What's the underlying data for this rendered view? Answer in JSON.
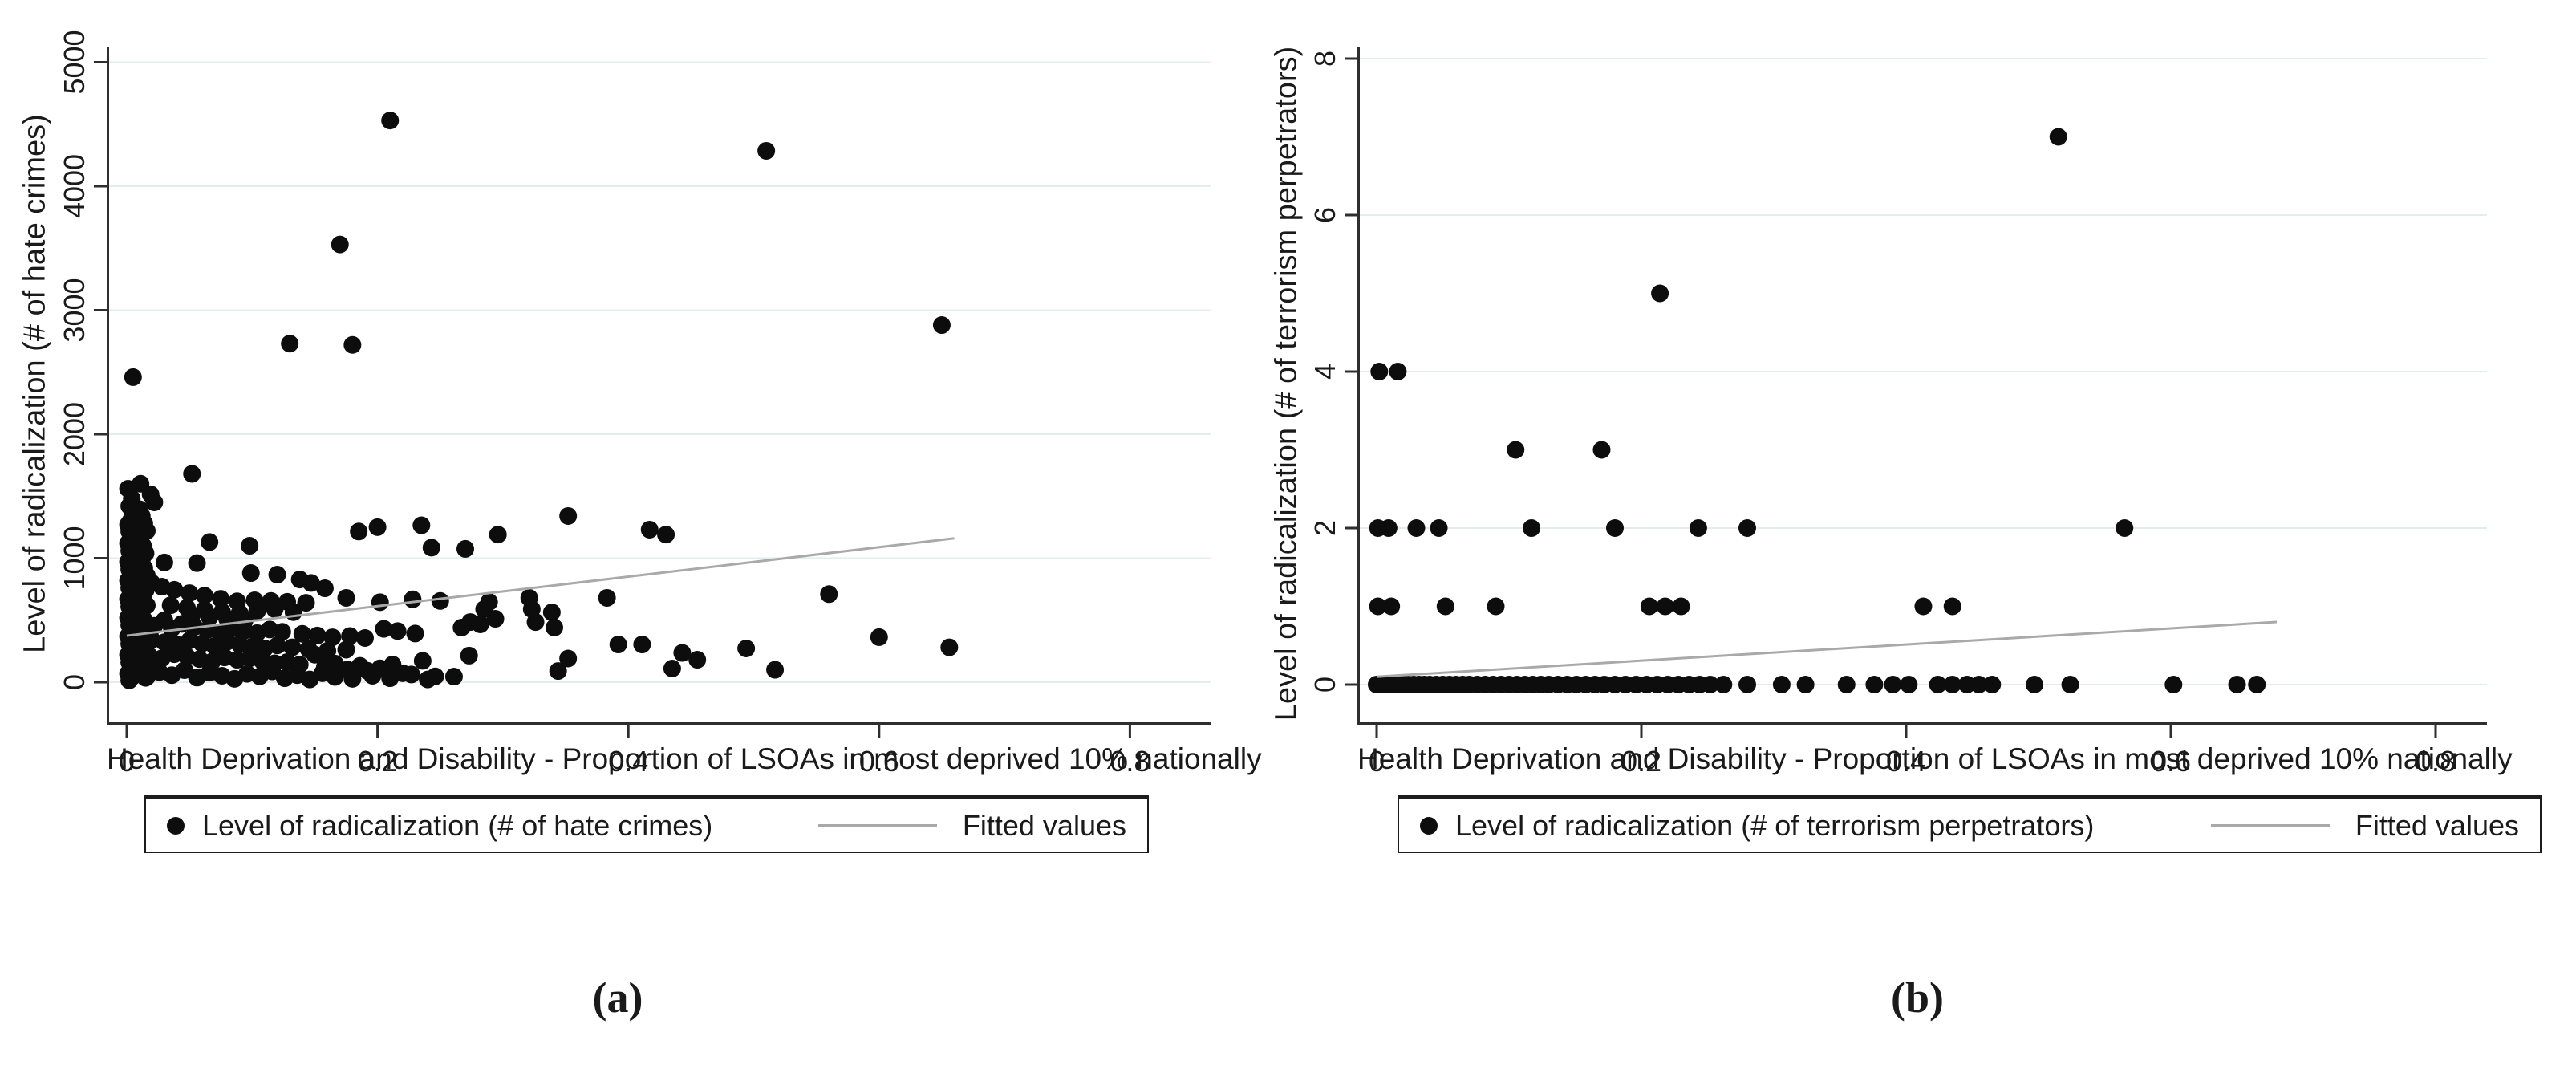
{
  "figure": {
    "background": "#ffffff",
    "colors": {
      "dot": "#0d0d0d",
      "fitted_line": "#a9a9a9",
      "gridline": "#e2eeee",
      "axis": "#2e2e2e"
    }
  },
  "chart_data": [
    {
      "type": "scatter",
      "panel": "a",
      "caption": "(a)",
      "title": "",
      "xlabel": "Health Deprivation and Disability - Proportion of LSOAs in most deprived 10% nationally",
      "ylabel": "Level of radicalization (# of hate crimes)",
      "legend": [
        "Level of radicalization (# of hate crimes)",
        "Fitted values"
      ],
      "legend_position": "below",
      "grid": "horizontal",
      "x_ticks": [
        0,
        0.2,
        0.4,
        0.6,
        0.8
      ],
      "y_ticks": [
        0,
        1000,
        2000,
        3000,
        4000,
        5000
      ],
      "xlim": [
        -0.016,
        0.865
      ],
      "ylim": [
        -340,
        5120
      ],
      "fitted_values_line": {
        "x": [
          0,
          0.66
        ],
        "y": [
          375,
          1160
        ]
      },
      "points": [
        [
          0.005,
          2460
        ],
        [
          0.21,
          4530
        ],
        [
          0.51,
          4285
        ],
        [
          0.17,
          3530
        ],
        [
          0.13,
          2730
        ],
        [
          0.18,
          2720
        ],
        [
          0.65,
          2880
        ],
        [
          0.001,
          1560
        ],
        [
          0.004,
          1480
        ],
        [
          0.002,
          1420
        ],
        [
          0.005,
          1360
        ],
        [
          0.003,
          1300
        ],
        [
          0.001,
          1270
        ],
        [
          0.004,
          1245
        ],
        [
          0.002,
          1215
        ],
        [
          0.005,
          1185
        ],
        [
          0.003,
          1150
        ],
        [
          0.001,
          1120
        ],
        [
          0.004,
          1090
        ],
        [
          0.002,
          1060
        ],
        [
          0.005,
          1030
        ],
        [
          0.003,
          1000
        ],
        [
          0.001,
          970
        ],
        [
          0.004,
          940
        ],
        [
          0.002,
          910
        ],
        [
          0.005,
          880
        ],
        [
          0.003,
          850
        ],
        [
          0.001,
          820
        ],
        [
          0.004,
          790
        ],
        [
          0.002,
          760
        ],
        [
          0.005,
          730
        ],
        [
          0.003,
          700
        ],
        [
          0.001,
          670
        ],
        [
          0.004,
          640
        ],
        [
          0.002,
          610
        ],
        [
          0.005,
          580
        ],
        [
          0.003,
          550
        ],
        [
          0.001,
          520
        ],
        [
          0.004,
          490
        ],
        [
          0.002,
          460
        ],
        [
          0.005,
          430
        ],
        [
          0.003,
          400
        ],
        [
          0.001,
          370
        ],
        [
          0.004,
          340
        ],
        [
          0.002,
          310
        ],
        [
          0.005,
          280
        ],
        [
          0.003,
          250
        ],
        [
          0.001,
          220
        ],
        [
          0.004,
          190
        ],
        [
          0.002,
          160
        ],
        [
          0.005,
          130
        ],
        [
          0.003,
          100
        ],
        [
          0.001,
          70
        ],
        [
          0.004,
          40
        ],
        [
          0.002,
          15
        ],
        [
          0.011,
          1600
        ],
        [
          0.019,
          1515
        ],
        [
          0.022,
          1450
        ],
        [
          0.01,
          1395
        ],
        [
          0.012,
          1340
        ],
        [
          0.014,
          1280
        ],
        [
          0.016,
          1220
        ],
        [
          0.011,
          1160
        ],
        [
          0.013,
          1100
        ],
        [
          0.015,
          1040
        ],
        [
          0.012,
          980
        ],
        [
          0.014,
          920
        ],
        [
          0.016,
          860
        ],
        [
          0.012,
          800
        ],
        [
          0.015,
          740
        ],
        [
          0.013,
          680
        ],
        [
          0.016,
          620
        ],
        [
          0.012,
          560
        ],
        [
          0.014,
          500
        ],
        [
          0.016,
          440
        ],
        [
          0.013,
          380
        ],
        [
          0.015,
          320
        ],
        [
          0.012,
          260
        ],
        [
          0.014,
          200
        ],
        [
          0.016,
          140
        ],
        [
          0.013,
          80
        ],
        [
          0.015,
          35
        ],
        [
          0.052,
          1680
        ],
        [
          0.066,
          1130
        ],
        [
          0.098,
          1100
        ],
        [
          0.185,
          1215
        ],
        [
          0.2,
          1250
        ],
        [
          0.235,
          1265
        ],
        [
          0.243,
          1085
        ],
        [
          0.27,
          1075
        ],
        [
          0.296,
          1190
        ],
        [
          0.352,
          1340
        ],
        [
          0.417,
          1230
        ],
        [
          0.43,
          1190
        ],
        [
          0.03,
          965
        ],
        [
          0.056,
          960
        ],
        [
          0.099,
          880
        ],
        [
          0.12,
          867
        ],
        [
          0.138,
          828
        ],
        [
          0.147,
          800
        ],
        [
          0.158,
          757
        ],
        [
          0.02,
          800
        ],
        [
          0.028,
          770
        ],
        [
          0.038,
          745
        ],
        [
          0.05,
          718
        ],
        [
          0.062,
          698
        ],
        [
          0.075,
          672
        ],
        [
          0.088,
          652
        ],
        [
          0.102,
          660
        ],
        [
          0.115,
          655
        ],
        [
          0.128,
          648
        ],
        [
          0.143,
          640
        ],
        [
          0.175,
          680
        ],
        [
          0.202,
          645
        ],
        [
          0.228,
          668
        ],
        [
          0.25,
          655
        ],
        [
          0.035,
          620
        ],
        [
          0.048,
          600
        ],
        [
          0.062,
          585
        ],
        [
          0.076,
          568
        ],
        [
          0.09,
          558
        ],
        [
          0.104,
          575
        ],
        [
          0.118,
          590
        ],
        [
          0.133,
          565
        ],
        [
          0.052,
          540
        ],
        [
          0.066,
          525
        ],
        [
          0.08,
          512
        ],
        [
          0.094,
          498
        ],
        [
          0.015,
          480
        ],
        [
          0.022,
          455
        ],
        [
          0.03,
          500
        ],
        [
          0.036,
          432
        ],
        [
          0.044,
          470
        ],
        [
          0.054,
          445
        ],
        [
          0.064,
          420
        ],
        [
          0.074,
          402
        ],
        [
          0.084,
          435
        ],
        [
          0.094,
          415
        ],
        [
          0.104,
          396
        ],
        [
          0.114,
          425
        ],
        [
          0.124,
          406
        ],
        [
          0.14,
          390
        ],
        [
          0.152,
          376
        ],
        [
          0.164,
          362
        ],
        [
          0.178,
          372
        ],
        [
          0.19,
          356
        ],
        [
          0.205,
          430
        ],
        [
          0.216,
          412
        ],
        [
          0.23,
          392
        ],
        [
          0.02,
          342
        ],
        [
          0.03,
          322
        ],
        [
          0.04,
          302
        ],
        [
          0.05,
          336
        ],
        [
          0.06,
          312
        ],
        [
          0.07,
          292
        ],
        [
          0.08,
          326
        ],
        [
          0.09,
          306
        ],
        [
          0.1,
          286
        ],
        [
          0.11,
          272
        ],
        [
          0.12,
          296
        ],
        [
          0.132,
          281
        ],
        [
          0.145,
          266
        ],
        [
          0.16,
          252
        ],
        [
          0.175,
          262
        ],
        [
          0.008,
          232
        ],
        [
          0.018,
          212
        ],
        [
          0.028,
          192
        ],
        [
          0.038,
          226
        ],
        [
          0.048,
          206
        ],
        [
          0.058,
          186
        ],
        [
          0.068,
          166
        ],
        [
          0.078,
          200
        ],
        [
          0.088,
          181
        ],
        [
          0.098,
          192
        ],
        [
          0.108,
          172
        ],
        [
          0.118,
          152
        ],
        [
          0.128,
          162
        ],
        [
          0.138,
          142
        ],
        [
          0.15,
          222
        ],
        [
          0.158,
          122
        ],
        [
          0.166,
          150
        ],
        [
          0.176,
          102
        ],
        [
          0.186,
          132
        ],
        [
          0.192,
          92
        ],
        [
          0.202,
          112
        ],
        [
          0.212,
          142
        ],
        [
          0.22,
          72
        ],
        [
          0.227,
          62
        ],
        [
          0.236,
          172
        ],
        [
          0.246,
          47
        ],
        [
          0.006,
          62
        ],
        [
          0.016,
          42
        ],
        [
          0.026,
          82
        ],
        [
          0.036,
          57
        ],
        [
          0.046,
          97
        ],
        [
          0.056,
          37
        ],
        [
          0.066,
          77
        ],
        [
          0.076,
          52
        ],
        [
          0.086,
          27
        ],
        [
          0.096,
          67
        ],
        [
          0.106,
          47
        ],
        [
          0.116,
          87
        ],
        [
          0.126,
          32
        ],
        [
          0.136,
          57
        ],
        [
          0.146,
          22
        ],
        [
          0.156,
          72
        ],
        [
          0.166,
          42
        ],
        [
          0.18,
          27
        ],
        [
          0.196,
          52
        ],
        [
          0.21,
          32
        ],
        [
          0.24,
          22
        ],
        [
          0.261,
          45
        ],
        [
          0.273,
          214
        ],
        [
          0.267,
          440
        ],
        [
          0.274,
          485
        ],
        [
          0.282,
          466
        ],
        [
          0.285,
          589
        ],
        [
          0.289,
          647
        ],
        [
          0.294,
          511
        ],
        [
          0.321,
          680
        ],
        [
          0.323,
          589
        ],
        [
          0.326,
          485
        ],
        [
          0.339,
          563
        ],
        [
          0.341,
          440
        ],
        [
          0.344,
          90
        ],
        [
          0.352,
          191
        ],
        [
          0.383,
          680
        ],
        [
          0.392,
          304
        ],
        [
          0.411,
          304
        ],
        [
          0.435,
          110
        ],
        [
          0.443,
          236
        ],
        [
          0.455,
          181
        ],
        [
          0.494,
          272
        ],
        [
          0.517,
          100
        ],
        [
          0.56,
          710
        ],
        [
          0.6,
          363
        ],
        [
          0.656,
          281
        ]
      ]
    },
    {
      "type": "scatter",
      "panel": "b",
      "caption": "(b)",
      "title": "",
      "xlabel": "Health Deprivation and Disability - Proportion of LSOAs in most deprived 10% nationally",
      "ylabel": "Level of radicalization (# of terrorism perpetrators)",
      "legend": [
        "Level of radicalization (# of terrorism perpetrators)",
        "Fitted values"
      ],
      "legend_position": "below",
      "grid": "horizontal",
      "x_ticks": [
        0,
        0.2,
        0.4,
        0.6,
        0.8
      ],
      "y_ticks": [
        0,
        2,
        4,
        6,
        8
      ],
      "xlim": [
        -0.015,
        0.84
      ],
      "ylim": [
        -0.55,
        8.15
      ],
      "fitted_values_line": {
        "x": [
          0,
          0.68
        ],
        "y": [
          0.1,
          0.8
        ]
      },
      "points": [
        [
          0.515,
          7
        ],
        [
          0.214,
          5
        ],
        [
          0.002,
          4
        ],
        [
          0.016,
          4
        ],
        [
          0.105,
          3
        ],
        [
          0.17,
          3
        ],
        [
          0.001,
          2
        ],
        [
          0.009,
          2
        ],
        [
          0.03,
          2
        ],
        [
          0.047,
          2
        ],
        [
          0.117,
          2
        ],
        [
          0.18,
          2
        ],
        [
          0.243,
          2
        ],
        [
          0.28,
          2
        ],
        [
          0.565,
          2
        ],
        [
          0.001,
          1
        ],
        [
          0.011,
          1
        ],
        [
          0.052,
          1
        ],
        [
          0.09,
          1
        ],
        [
          0.206,
          1
        ],
        [
          0.218,
          1
        ],
        [
          0.23,
          1
        ],
        [
          0.413,
          1
        ],
        [
          0.435,
          1
        ],
        [
          0.0,
          0
        ],
        [
          0.003,
          0
        ],
        [
          0.006,
          0
        ],
        [
          0.009,
          0
        ],
        [
          0.012,
          0
        ],
        [
          0.016,
          0
        ],
        [
          0.02,
          0
        ],
        [
          0.024,
          0
        ],
        [
          0.028,
          0
        ],
        [
          0.032,
          0
        ],
        [
          0.036,
          0
        ],
        [
          0.04,
          0
        ],
        [
          0.045,
          0
        ],
        [
          0.05,
          0
        ],
        [
          0.055,
          0
        ],
        [
          0.06,
          0
        ],
        [
          0.065,
          0
        ],
        [
          0.07,
          0
        ],
        [
          0.076,
          0
        ],
        [
          0.082,
          0
        ],
        [
          0.088,
          0
        ],
        [
          0.094,
          0
        ],
        [
          0.1,
          0
        ],
        [
          0.106,
          0
        ],
        [
          0.112,
          0
        ],
        [
          0.118,
          0
        ],
        [
          0.124,
          0
        ],
        [
          0.13,
          0
        ],
        [
          0.137,
          0
        ],
        [
          0.144,
          0
        ],
        [
          0.151,
          0
        ],
        [
          0.158,
          0
        ],
        [
          0.165,
          0
        ],
        [
          0.172,
          0
        ],
        [
          0.18,
          0
        ],
        [
          0.188,
          0
        ],
        [
          0.196,
          0
        ],
        [
          0.204,
          0
        ],
        [
          0.212,
          0
        ],
        [
          0.22,
          0
        ],
        [
          0.228,
          0
        ],
        [
          0.236,
          0
        ],
        [
          0.244,
          0
        ],
        [
          0.252,
          0
        ],
        [
          0.262,
          0
        ],
        [
          0.28,
          0
        ],
        [
          0.306,
          0
        ],
        [
          0.324,
          0
        ],
        [
          0.355,
          0
        ],
        [
          0.376,
          0
        ],
        [
          0.39,
          0
        ],
        [
          0.402,
          0
        ],
        [
          0.424,
          0
        ],
        [
          0.435,
          0
        ],
        [
          0.446,
          0
        ],
        [
          0.455,
          0
        ],
        [
          0.465,
          0
        ],
        [
          0.497,
          0
        ],
        [
          0.524,
          0
        ],
        [
          0.602,
          0
        ],
        [
          0.65,
          0
        ],
        [
          0.665,
          0
        ]
      ]
    }
  ]
}
